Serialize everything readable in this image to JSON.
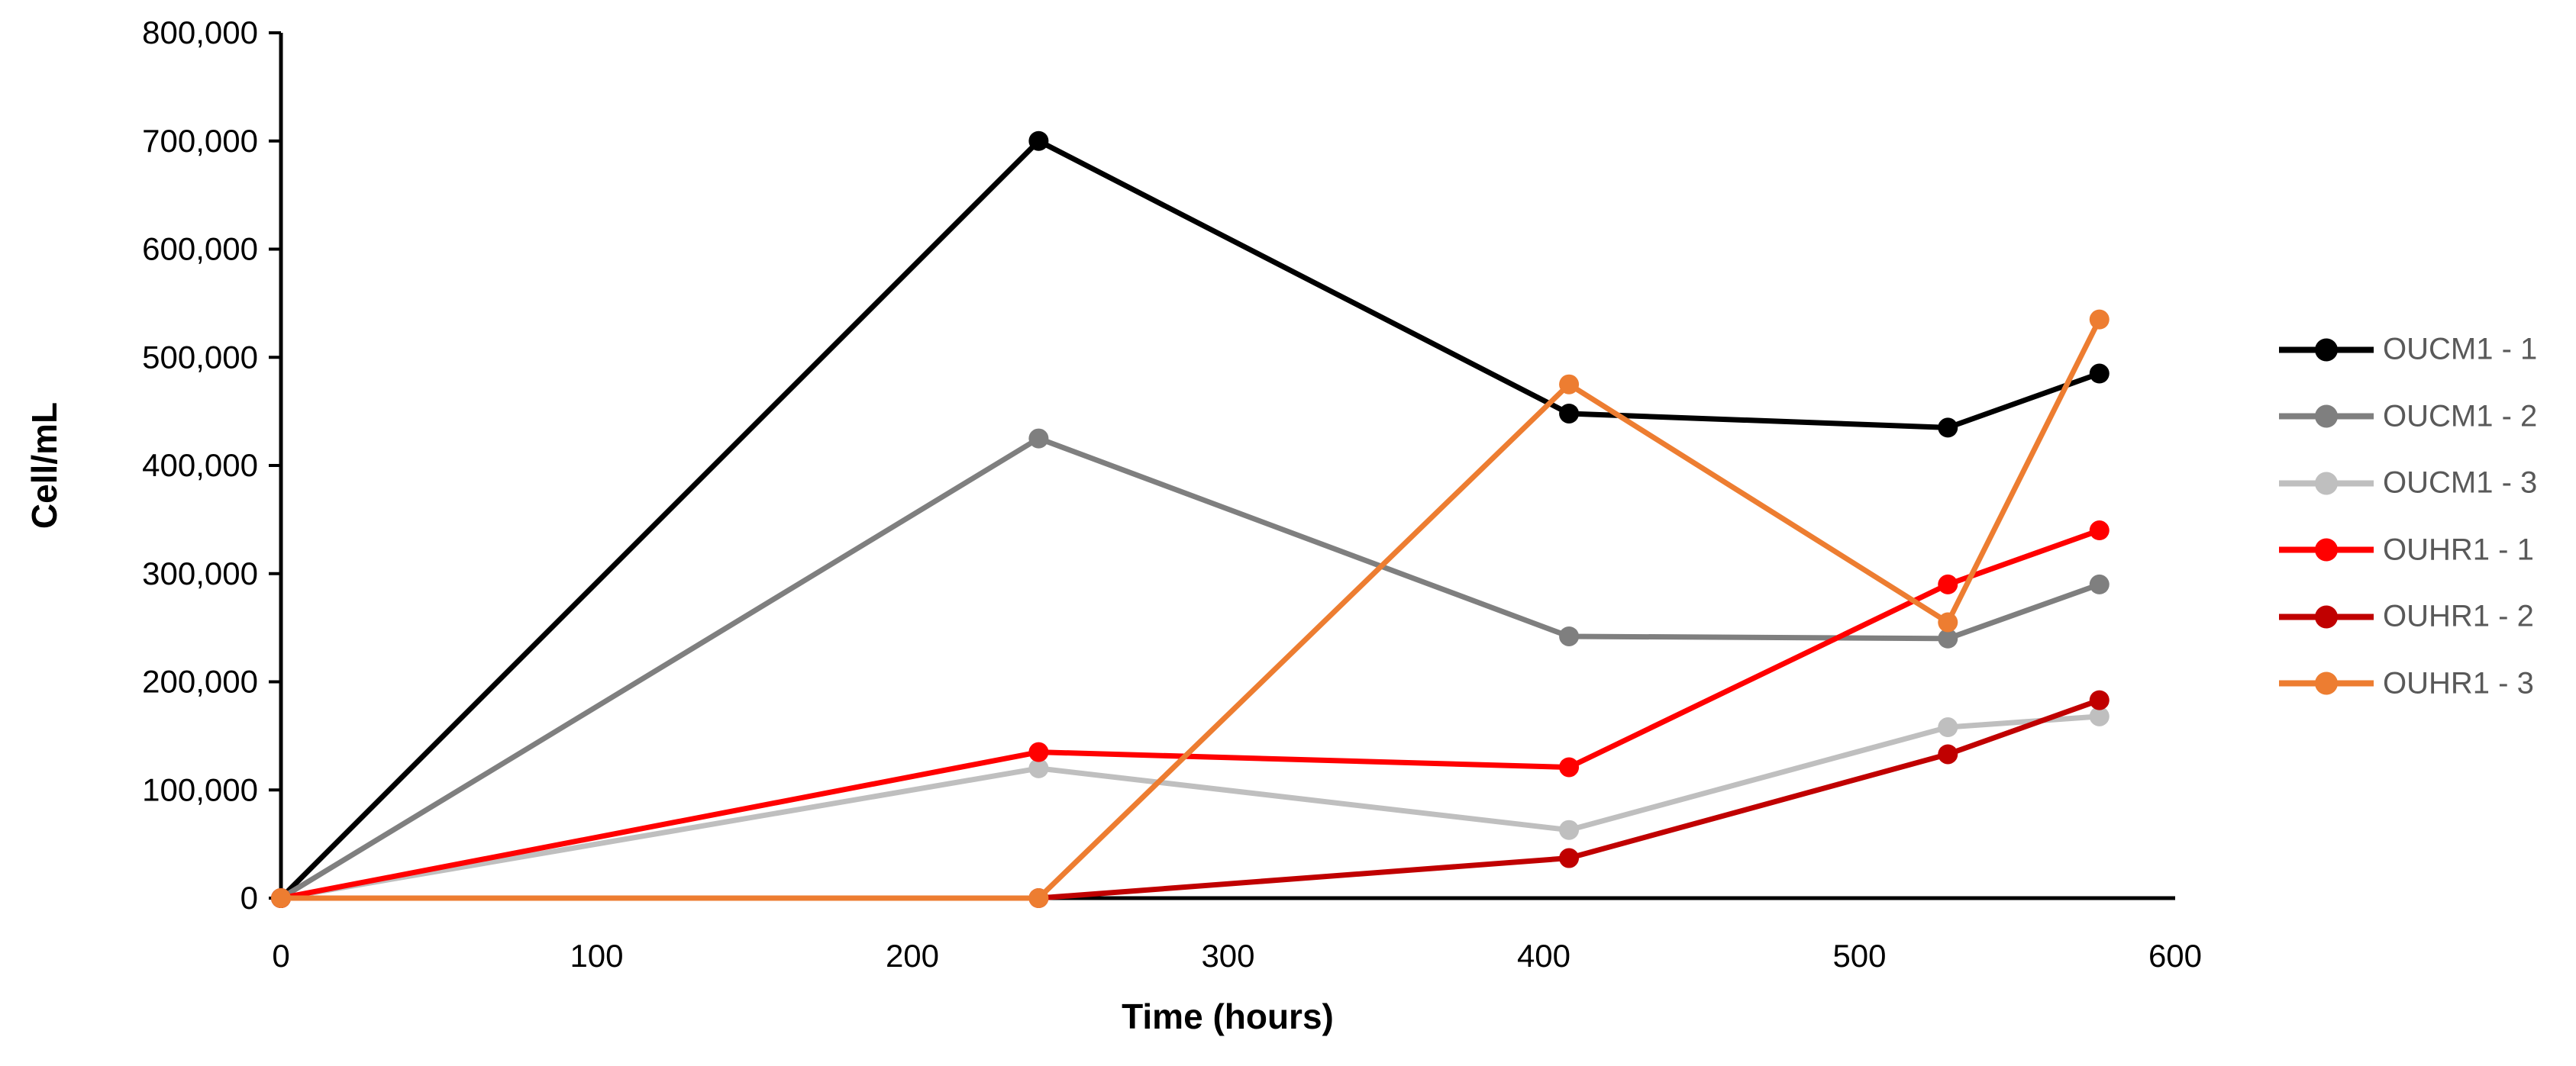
{
  "chart_data": {
    "type": "line",
    "title": "",
    "xlabel": "Time (hours)",
    "ylabel": "Cell/mL",
    "xlim": [
      0,
      600
    ],
    "ylim": [
      0,
      800000
    ],
    "x_ticks": [
      0,
      100,
      200,
      300,
      400,
      500,
      600
    ],
    "y_ticks": [
      0,
      100000,
      200000,
      300000,
      400000,
      500000,
      600000,
      700000,
      800000
    ],
    "grid": false,
    "legend_position": "right",
    "marker": "circle",
    "x": [
      0,
      240,
      408,
      528,
      576
    ],
    "series": [
      {
        "name": "OUCM1 - 1",
        "color": "#000000",
        "values": [
          0,
          700000,
          448000,
          435000,
          485000
        ]
      },
      {
        "name": "OUCM1 - 2",
        "color": "#7F7F7F",
        "values": [
          0,
          425000,
          242000,
          240000,
          290000
        ]
      },
      {
        "name": "OUCM1 - 3",
        "color": "#BFBFBF",
        "values": [
          0,
          120000,
          63000,
          158000,
          168000
        ]
      },
      {
        "name": "OUHR1 - 1",
        "color": "#FF0000",
        "values": [
          0,
          135000,
          121000,
          290000,
          340000
        ]
      },
      {
        "name": "OUHR1 - 2",
        "color": "#C00000",
        "values": [
          0,
          0,
          37000,
          133000,
          183000
        ]
      },
      {
        "name": "OUHR1 - 3",
        "color": "#ED7D31",
        "values": [
          0,
          0,
          475000,
          255000,
          535000
        ]
      }
    ],
    "axis_color": "#000000",
    "tick_label_color": "#000000",
    "legend_text_color": "#595959"
  }
}
